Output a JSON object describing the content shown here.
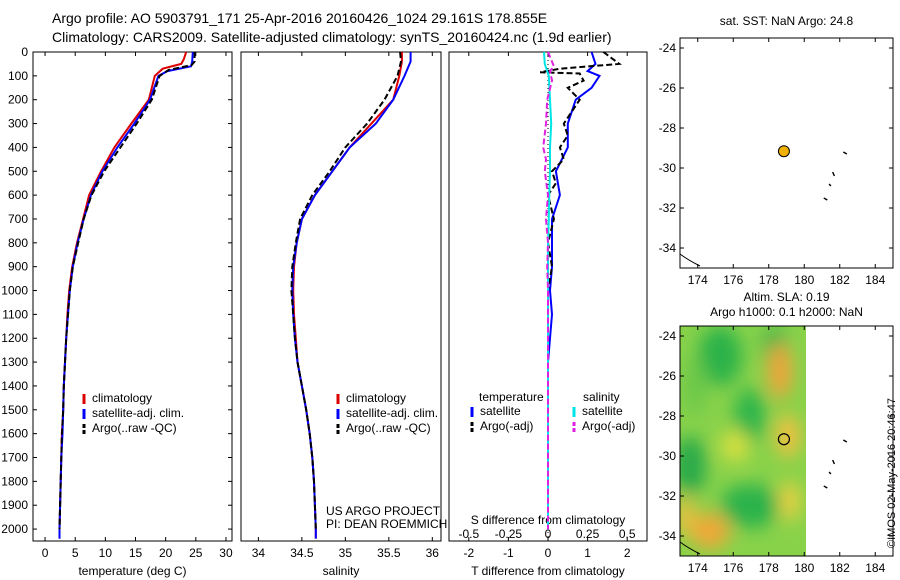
{
  "header": {
    "line1": "Argo profile: AO 5903791_171 25-Apr-2016 20160426_1024 29.161S 178.855E",
    "line2": "Climatology: CARS2009. Satellite-adjusted climatology: synTS_20160424.nc (1.9d earlier)"
  },
  "credit": "©IMOS 02-May-2016 20:46:47",
  "project": {
    "line1": "US ARGO PROJECT",
    "line2": "PI: DEAN ROEMMICH"
  },
  "colors": {
    "clim": "#dd0000",
    "sat": "#0000ff",
    "argo": "#000000",
    "cyan": "#00e5e5",
    "magenta": "#e020e0",
    "dot": "#f0b000"
  },
  "chart_data": [
    {
      "id": "temperature",
      "type": "line",
      "xlabel": "temperature (deg C)",
      "xlim": [
        -2,
        31
      ],
      "ylim": [
        2050,
        0
      ],
      "xticks": [
        0,
        5,
        10,
        15,
        20,
        25,
        30
      ],
      "yticks": [
        0,
        100,
        200,
        300,
        400,
        500,
        600,
        700,
        800,
        900,
        1000,
        1100,
        1200,
        1300,
        1400,
        1500,
        1600,
        1700,
        1800,
        1900,
        2000
      ],
      "legend": [
        "climatology",
        "satellite-adj. clim.",
        "Argo(..raw -QC)"
      ],
      "series": [
        {
          "name": "climatology",
          "color_key": "clim",
          "points": [
            [
              23.4,
              0
            ],
            [
              23.0,
              30
            ],
            [
              22.6,
              50
            ],
            [
              19.5,
              70
            ],
            [
              18.2,
              100
            ],
            [
              17.2,
              200
            ],
            [
              14.3,
              300
            ],
            [
              11.5,
              400
            ],
            [
              9.3,
              500
            ],
            [
              7.3,
              600
            ],
            [
              6.3,
              700
            ],
            [
              5.3,
              800
            ],
            [
              4.5,
              900
            ],
            [
              4.0,
              1000
            ],
            [
              3.7,
              1100
            ],
            [
              3.5,
              1200
            ],
            [
              3.3,
              1300
            ],
            [
              3.1,
              1400
            ],
            [
              3.0,
              1500
            ],
            [
              2.8,
              1600
            ],
            [
              2.7,
              1700
            ],
            [
              2.6,
              1800
            ],
            [
              2.5,
              1900
            ],
            [
              2.4,
              2000
            ],
            [
              2.4,
              2040
            ]
          ]
        },
        {
          "name": "satellite-adj. clim.",
          "color_key": "sat",
          "points": [
            [
              24.5,
              0
            ],
            [
              24.4,
              40
            ],
            [
              24.2,
              60
            ],
            [
              20.3,
              80
            ],
            [
              18.8,
              100
            ],
            [
              17.4,
              200
            ],
            [
              14.8,
              300
            ],
            [
              12.0,
              400
            ],
            [
              9.5,
              500
            ],
            [
              7.6,
              600
            ],
            [
              6.4,
              700
            ],
            [
              5.4,
              800
            ],
            [
              4.6,
              900
            ],
            [
              4.1,
              1000
            ],
            [
              3.8,
              1100
            ],
            [
              3.5,
              1200
            ],
            [
              3.3,
              1300
            ],
            [
              3.1,
              1400
            ],
            [
              3.0,
              1500
            ],
            [
              2.9,
              1600
            ],
            [
              2.7,
              1700
            ],
            [
              2.6,
              1800
            ],
            [
              2.5,
              1900
            ],
            [
              2.4,
              2000
            ],
            [
              2.4,
              2040
            ]
          ]
        },
        {
          "name": "Argo(..raw -QC)",
          "color_key": "argo",
          "dashed": true,
          "points": [
            [
              24.8,
              0
            ],
            [
              24.8,
              40
            ],
            [
              24.3,
              55
            ],
            [
              20.5,
              75
            ],
            [
              19.0,
              100
            ],
            [
              17.7,
              200
            ],
            [
              15.2,
              300
            ],
            [
              12.5,
              400
            ],
            [
              9.8,
              500
            ],
            [
              7.7,
              600
            ],
            [
              6.4,
              700
            ],
            [
              5.5,
              800
            ],
            [
              4.6,
              900
            ],
            [
              4.1,
              1000
            ],
            [
              3.8,
              1100
            ],
            [
              3.5,
              1200
            ],
            [
              3.3,
              1300
            ],
            [
              3.1,
              1400
            ],
            [
              3.0,
              1500
            ],
            [
              2.8,
              1600
            ],
            [
              2.7,
              1700
            ],
            [
              2.6,
              1800
            ],
            [
              2.5,
              1900
            ],
            [
              2.4,
              2000
            ]
          ]
        }
      ]
    },
    {
      "id": "salinity",
      "type": "line",
      "xlabel": "salinity",
      "xlim": [
        33.8,
        36.1
      ],
      "ylim": [
        2050,
        0
      ],
      "xticks": [
        34,
        34.5,
        35,
        35.5,
        36
      ],
      "legend": [
        "climatology",
        "satellite-adj. clim.",
        "Argo(..raw -QC)"
      ],
      "series": [
        {
          "name": "climatology",
          "color_key": "clim",
          "points": [
            [
              35.65,
              0
            ],
            [
              35.65,
              40
            ],
            [
              35.62,
              100
            ],
            [
              35.55,
              200
            ],
            [
              35.3,
              300
            ],
            [
              35.05,
              400
            ],
            [
              34.85,
              500
            ],
            [
              34.65,
              600
            ],
            [
              34.5,
              700
            ],
            [
              34.44,
              800
            ],
            [
              34.41,
              900
            ],
            [
              34.4,
              1000
            ],
            [
              34.41,
              1100
            ],
            [
              34.43,
              1200
            ],
            [
              34.45,
              1300
            ],
            [
              34.5,
              1400
            ],
            [
              34.55,
              1500
            ],
            [
              34.59,
              1600
            ],
            [
              34.62,
              1700
            ],
            [
              34.64,
              1800
            ],
            [
              34.65,
              1900
            ],
            [
              34.66,
              2000
            ],
            [
              34.66,
              2040
            ]
          ]
        },
        {
          "name": "satellite-adj. clim.",
          "color_key": "sat",
          "points": [
            [
              35.75,
              0
            ],
            [
              35.75,
              40
            ],
            [
              35.68,
              100
            ],
            [
              35.55,
              200
            ],
            [
              35.35,
              300
            ],
            [
              35.05,
              400
            ],
            [
              34.85,
              500
            ],
            [
              34.65,
              600
            ],
            [
              34.5,
              700
            ],
            [
              34.44,
              800
            ],
            [
              34.4,
              900
            ],
            [
              34.39,
              1000
            ],
            [
              34.4,
              1100
            ],
            [
              34.42,
              1200
            ],
            [
              34.45,
              1300
            ],
            [
              34.5,
              1400
            ],
            [
              34.55,
              1500
            ],
            [
              34.59,
              1600
            ],
            [
              34.62,
              1700
            ],
            [
              34.64,
              1800
            ],
            [
              34.65,
              1900
            ],
            [
              34.66,
              2000
            ],
            [
              34.66,
              2040
            ]
          ]
        },
        {
          "name": "Argo(..raw -QC)",
          "color_key": "argo",
          "dashed": true,
          "points": [
            [
              35.63,
              0
            ],
            [
              35.64,
              40
            ],
            [
              35.6,
              100
            ],
            [
              35.45,
              200
            ],
            [
              35.25,
              300
            ],
            [
              35.0,
              400
            ],
            [
              34.82,
              500
            ],
            [
              34.62,
              600
            ],
            [
              34.48,
              700
            ],
            [
              34.43,
              800
            ],
            [
              34.39,
              900
            ],
            [
              34.38,
              1000
            ],
            [
              34.4,
              1100
            ],
            [
              34.42,
              1200
            ],
            [
              34.45,
              1300
            ],
            [
              34.5,
              1400
            ],
            [
              34.55,
              1500
            ],
            [
              34.59,
              1600
            ],
            [
              34.62,
              1700
            ],
            [
              34.64,
              1800
            ],
            [
              34.65,
              1900
            ],
            [
              34.66,
              2000
            ]
          ]
        }
      ]
    },
    {
      "id": "differences",
      "type": "line",
      "xlabel": "T difference from climatology",
      "xlabel2": "S difference from climatology",
      "xlim": [
        -2.5,
        2.5
      ],
      "ylim": [
        2050,
        0
      ],
      "xticks": [
        -2,
        -1,
        0,
        1,
        2
      ],
      "sticks": [
        -0.5,
        -0.25,
        0,
        0.25,
        0.5
      ],
      "legend_headers": [
        "temperature",
        "salinity"
      ],
      "legend": [
        "satellite",
        "Argo(-adj)",
        "satellite",
        "Argo(-adj)"
      ],
      "series": [
        {
          "name": "satellite",
          "group": "temperature",
          "color_key": "sat",
          "points": [
            [
              1.1,
              0
            ],
            [
              1.2,
              50
            ],
            [
              1.0,
              80
            ],
            [
              1.3,
              100
            ],
            [
              1.1,
              150
            ],
            [
              0.7,
              200
            ],
            [
              0.6,
              250
            ],
            [
              0.5,
              300
            ],
            [
              0.5,
              400
            ],
            [
              0.2,
              500
            ],
            [
              0.3,
              600
            ],
            [
              0.1,
              700
            ],
            [
              0.1,
              800
            ],
            [
              0.1,
              900
            ],
            [
              0.05,
              1000
            ],
            [
              0.1,
              1100
            ],
            [
              0.05,
              1200
            ],
            [
              0.0,
              1300
            ],
            [
              0.0,
              1500
            ],
            [
              0.0,
              1700
            ],
            [
              0.0,
              2000
            ]
          ]
        },
        {
          "name": "Argo(-adj)",
          "group": "temperature",
          "color_key": "argo",
          "dashed": true,
          "points": [
            [
              1.4,
              0
            ],
            [
              1.8,
              50
            ],
            [
              0.3,
              70
            ],
            [
              -0.2,
              85
            ],
            [
              0.8,
              90
            ],
            [
              0.9,
              120
            ],
            [
              0.5,
              150
            ],
            [
              0.8,
              200
            ],
            [
              0.6,
              250
            ],
            [
              0.4,
              300
            ],
            [
              0.5,
              350
            ],
            [
              0.3,
              400
            ],
            [
              0.4,
              450
            ],
            [
              0.1,
              500
            ],
            [
              0.2,
              550
            ],
            [
              0.0,
              600
            ],
            [
              0.15,
              700
            ],
            [
              0.0,
              800
            ],
            [
              0.1,
              900
            ],
            [
              0.0,
              1000
            ],
            [
              0.0,
              1100
            ],
            [
              0.0,
              1200
            ],
            [
              0.0,
              1400
            ],
            [
              0.0,
              1600
            ],
            [
              0.0,
              2000
            ]
          ]
        },
        {
          "name": "satellite",
          "group": "salinity",
          "color_key": "cyan",
          "points": [
            [
              -0.1,
              0
            ],
            [
              -0.08,
              50
            ],
            [
              0.02,
              100
            ],
            [
              0.05,
              200
            ],
            [
              0.08,
              300
            ],
            [
              0.05,
              400
            ],
            [
              0.05,
              500
            ],
            [
              0.03,
              600
            ],
            [
              0.02,
              700
            ],
            [
              0.0,
              800
            ],
            [
              0.0,
              900
            ],
            [
              0.0,
              1000
            ],
            [
              0.0,
              1200
            ],
            [
              0.0,
              1400
            ],
            [
              0.0,
              1600
            ],
            [
              0.0,
              2000
            ]
          ]
        },
        {
          "name": "Argo(-adj)",
          "group": "salinity",
          "color_key": "magenta",
          "dashed": true,
          "points": [
            [
              0.0,
              0
            ],
            [
              0.15,
              60
            ],
            [
              0.05,
              80
            ],
            [
              0.1,
              120
            ],
            [
              -0.02,
              200
            ],
            [
              -0.05,
              300
            ],
            [
              -0.12,
              400
            ],
            [
              -0.05,
              450
            ],
            [
              -0.08,
              500
            ],
            [
              0.0,
              600
            ],
            [
              -0.05,
              700
            ],
            [
              0.0,
              800
            ],
            [
              -0.02,
              900
            ],
            [
              0.0,
              1000
            ],
            [
              0.0,
              1200
            ],
            [
              0.0,
              1400
            ],
            [
              0.0,
              1600
            ],
            [
              0.0,
              2000
            ]
          ]
        }
      ]
    },
    {
      "id": "sst-map",
      "type": "scatter",
      "title": "sat. SST: NaN Argo: 24.8",
      "xlim": [
        173,
        185
      ],
      "ylim": [
        -35,
        -23.5
      ],
      "xticks": [
        174,
        176,
        178,
        180,
        182,
        184
      ],
      "yticks": [
        -24,
        -26,
        -28,
        -30,
        -32,
        -34
      ],
      "marker": {
        "x": 178.855,
        "y": -29.161,
        "color_key": "dot"
      }
    },
    {
      "id": "sla-map",
      "type": "heatmap",
      "title_line1": "Altim. SLA: 0.19",
      "title_line2": "Argo h1000: 0.1 h2000: NaN",
      "xlim": [
        173,
        185
      ],
      "ylim": [
        -35,
        -23.5
      ],
      "xticks": [
        174,
        176,
        178,
        180,
        182,
        184
      ],
      "yticks": [
        -24,
        -26,
        -28,
        -30,
        -32,
        -34
      ],
      "marker": {
        "x": 178.855,
        "y": -29.161
      }
    }
  ]
}
